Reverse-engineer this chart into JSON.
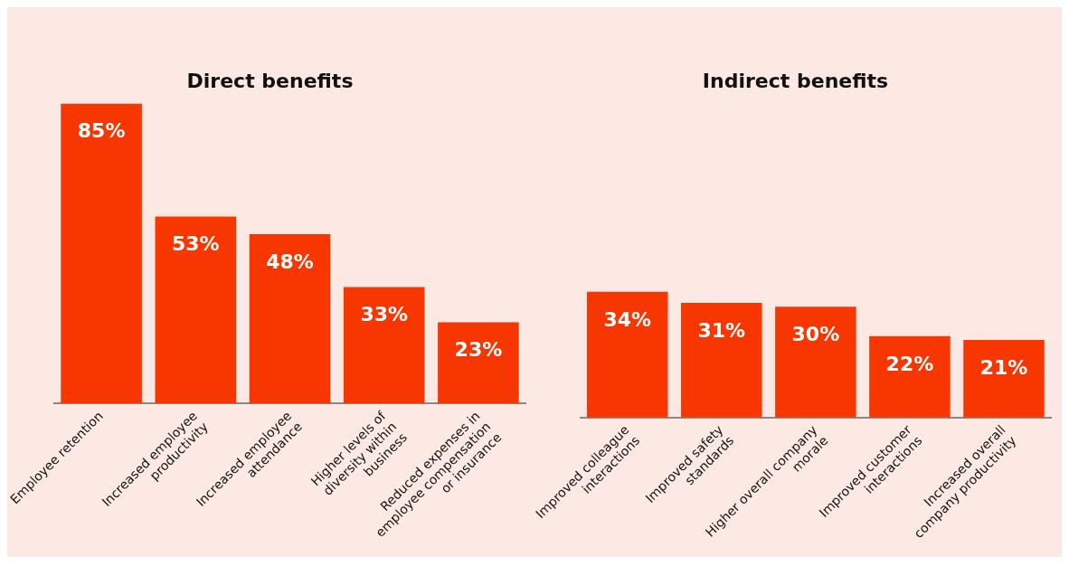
{
  "chart_data": [
    {
      "type": "bar",
      "title": "Direct benefits",
      "categories": [
        "Employee retention",
        "Increased employee productivity",
        "Increased employee attendance",
        "Higher levels of diversity within business",
        "Reduced expenses in employee compensation or insurance"
      ],
      "values": [
        85,
        53,
        48,
        33,
        23
      ],
      "value_labels": [
        "85%",
        "53%",
        "48%",
        "33%",
        "23%"
      ],
      "color": "#f73600",
      "grid": false,
      "legend": false
    },
    {
      "type": "bar",
      "title": "Indirect benefits",
      "categories": [
        "Improved colleague interactions",
        "Improved safety standards",
        "Higher overall company morale",
        "Improved customer interactions",
        "Increased overall company productivity"
      ],
      "values": [
        34,
        31,
        30,
        22,
        21
      ],
      "value_labels": [
        "34%",
        "31%",
        "30%",
        "22%",
        "21%"
      ],
      "color": "#f73600",
      "grid": false,
      "legend": false
    }
  ]
}
